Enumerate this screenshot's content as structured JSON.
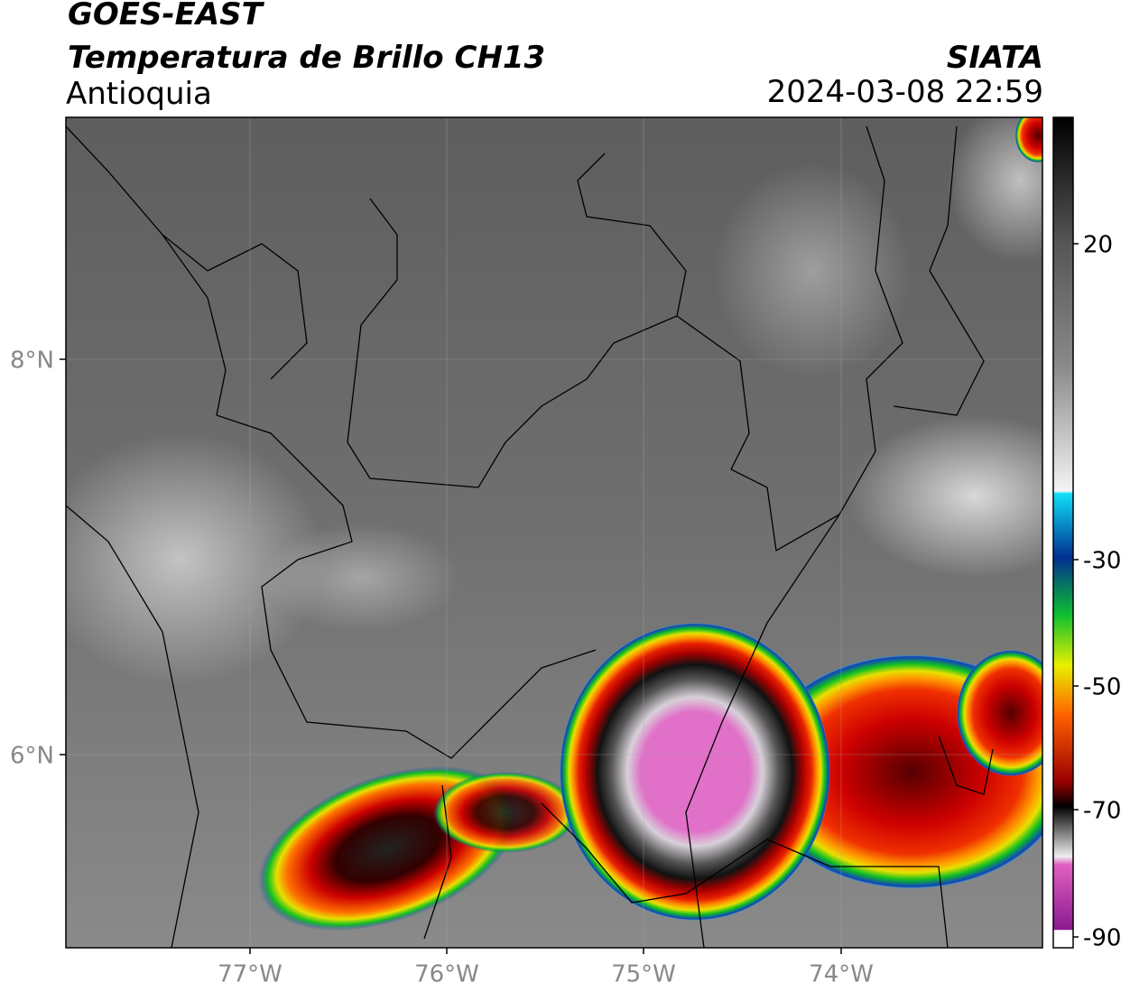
{
  "header": {
    "title": "GOES-EAST",
    "subtitle": "Temperatura de Brillo CH13",
    "region": "Antioquia",
    "source": "SIATA",
    "datetime": "2024-03-08 22:59"
  },
  "map": {
    "lat_ticks": [
      "8°N",
      "6°N"
    ],
    "lon_ticks": [
      "77°W",
      "76°W",
      "75°W",
      "74°W"
    ]
  },
  "colorbar": {
    "ticks": [
      "20",
      "-30",
      "-50",
      "-70",
      "-90"
    ]
  }
}
